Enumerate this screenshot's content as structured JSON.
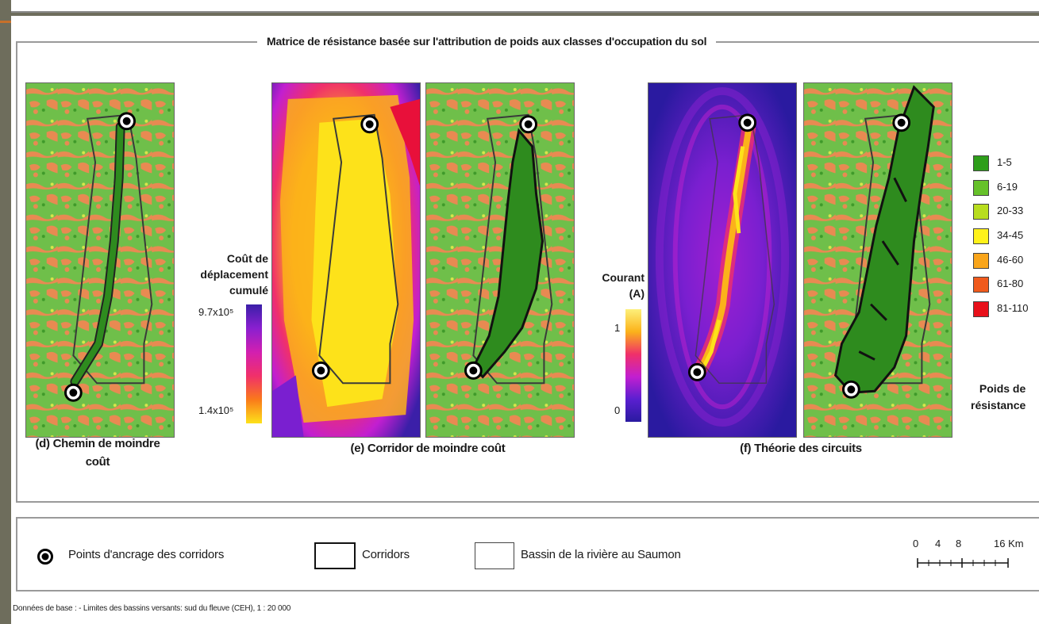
{
  "main_title": "Matrice de résistance basée sur l'attribution de poids aux classes d'occupation du sol",
  "panels": {
    "d": {
      "label_line1": "(d) Chemin de moindre",
      "label_line2": "coût"
    },
    "e": {
      "label": "(e) Corridor de moindre coût"
    },
    "f": {
      "label": "(f) Théorie des circuits"
    }
  },
  "cost_colorbar": {
    "title_line1": "Coût de",
    "title_line2": "déplacement",
    "title_line3": "cumulé",
    "max_label": "9.7x10⁵",
    "min_label": "1.4x10⁵",
    "colors": [
      "#3b1fa8",
      "#8a1fd0",
      "#d21fb0",
      "#f0306a",
      "#fa7a1a",
      "#fde21a"
    ]
  },
  "current_colorbar": {
    "title_line1": "Courant",
    "title_line2": "(A)",
    "tick_1": "1",
    "tick_0": "0",
    "colors": [
      "#fdf07a",
      "#fbb21a",
      "#f0306a",
      "#c21fd0",
      "#5a1fd0",
      "#2a1aa0"
    ]
  },
  "resistance_legend": {
    "title_line1": "Poids de",
    "title_line2": "résistance",
    "classes": [
      {
        "label": "1-5",
        "color": "#2e9e1a"
      },
      {
        "label": "6-19",
        "color": "#66c12a"
      },
      {
        "label": "20-33",
        "color": "#b8dd1e"
      },
      {
        "label": "34-45",
        "color": "#fff21a"
      },
      {
        "label": "46-60",
        "color": "#f9a51a"
      },
      {
        "label": "61-80",
        "color": "#f05a1c"
      },
      {
        "label": "81-110",
        "color": "#e8101a"
      }
    ]
  },
  "legend": {
    "anchor_points": "Points d'ancrage des corridors",
    "corridors": "Corridors",
    "basin": "Bassin de la rivière au Saumon"
  },
  "scale": {
    "t0": "0",
    "t4": "4",
    "t8": "8",
    "t16": "16 Km"
  },
  "footnote": "Données de base : - Limites des bassins versants: sud du fleuve (CEH), 1 : 20 000",
  "colors": {
    "landcover_green": "#6fbf4a",
    "landcover_orange": "#e88a52",
    "corridor_green": "#2e8b1e",
    "current_bg": "#2a1aa0",
    "cost_yellow": "#fde21a"
  }
}
